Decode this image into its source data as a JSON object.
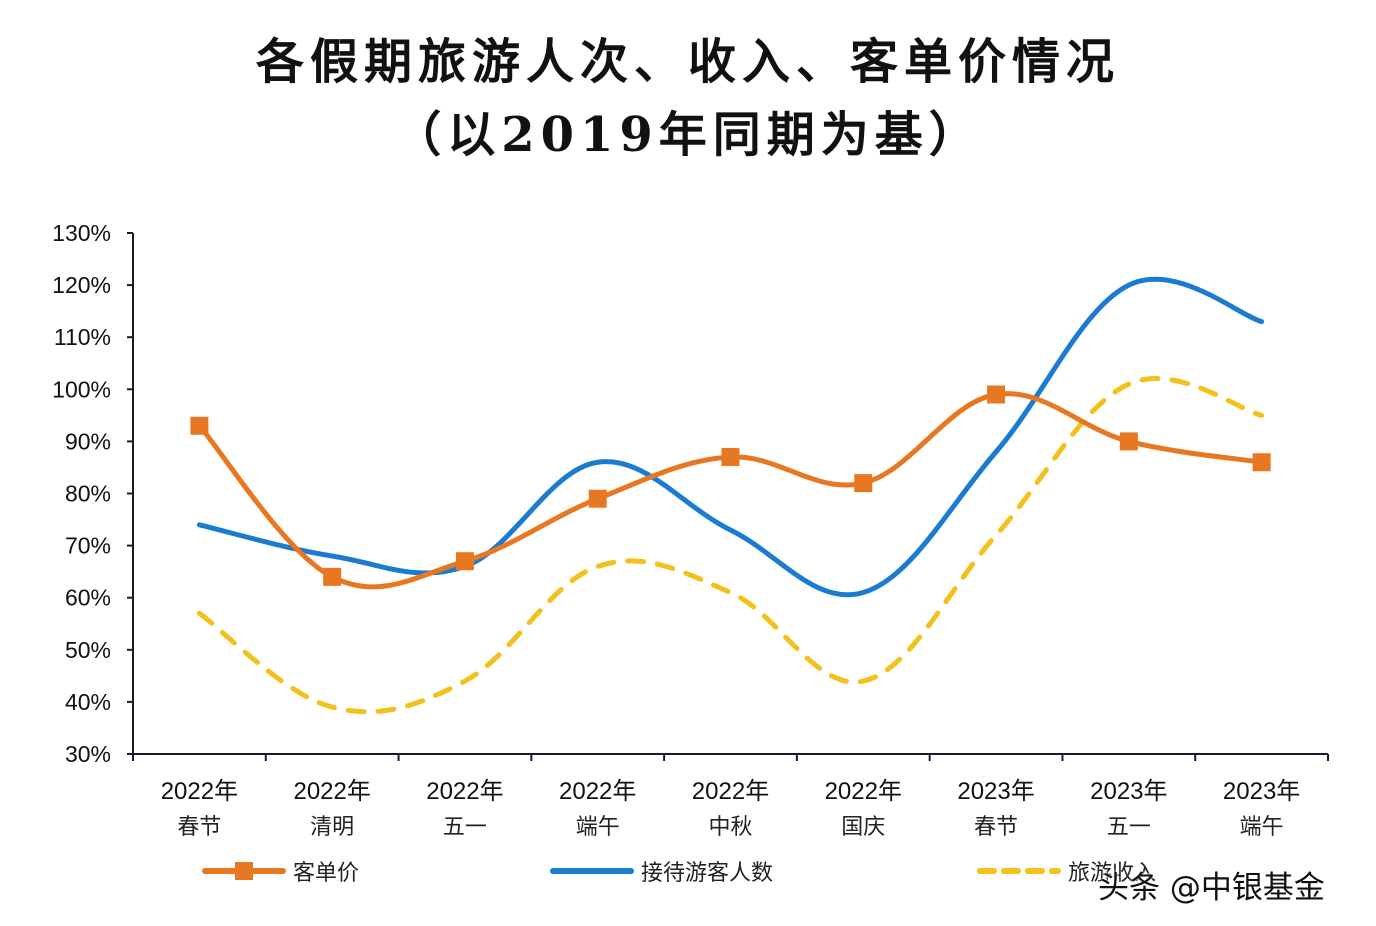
{
  "chart_data": {
    "type": "line",
    "title": "各假期旅游人次、收入、客单价情况",
    "subtitle": "（以2019年同期为基）",
    "xlabel": "",
    "ylabel": "",
    "ylim": [
      30,
      130
    ],
    "ytick_step": 10,
    "ytick_suffix": "%",
    "grid": false,
    "legend_position": "bottom",
    "categories": [
      [
        "2022年",
        "春节"
      ],
      [
        "2022年",
        "清明"
      ],
      [
        "2022年",
        "五一"
      ],
      [
        "2022年",
        "端午"
      ],
      [
        "2022年",
        "中秋"
      ],
      [
        "2022年",
        "国庆"
      ],
      [
        "2023年",
        "春节"
      ],
      [
        "2023年",
        "五一"
      ],
      [
        "2023年",
        "端午"
      ]
    ],
    "series": [
      {
        "name": "客单价",
        "color": "#E87722",
        "style": "solid-with-square-markers",
        "smooth": true,
        "values": [
          93,
          64,
          67,
          79,
          87,
          82,
          99,
          90,
          86
        ]
      },
      {
        "name": "接待游客人数",
        "color": "#1A7BD0",
        "style": "solid",
        "smooth": true,
        "values": [
          74,
          68,
          66,
          86,
          73,
          61,
          88,
          120,
          113
        ]
      },
      {
        "name": "旅游收入",
        "color": "#F2C11C",
        "style": "dashed",
        "smooth": true,
        "values": [
          57,
          39,
          44,
          66,
          61,
          44,
          72,
          101,
          95
        ]
      }
    ]
  },
  "watermark": "头条 @中银基金"
}
